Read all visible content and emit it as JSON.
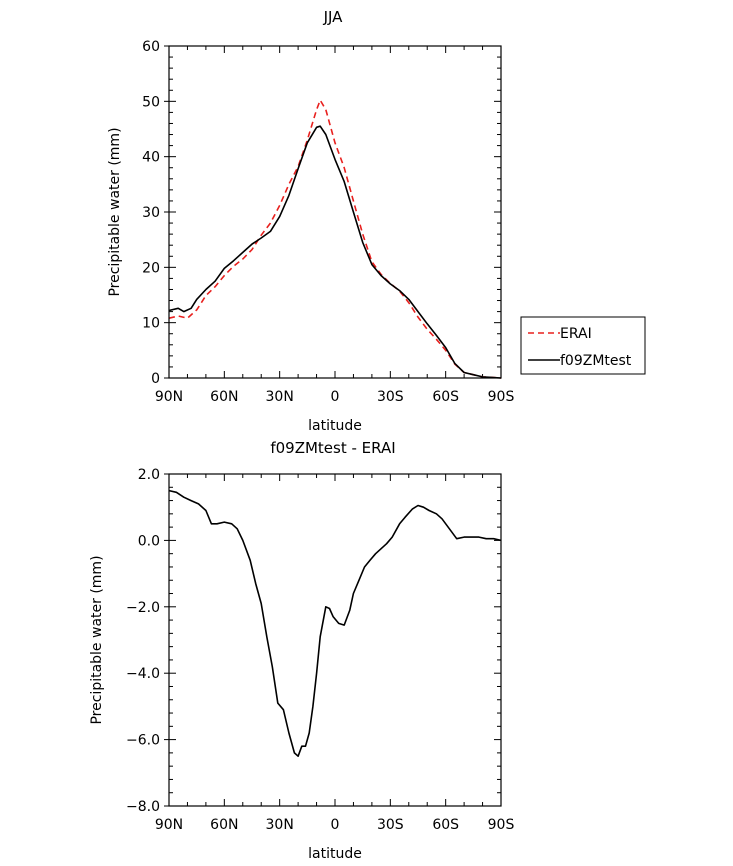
{
  "chart_data": [
    {
      "type": "line",
      "title": "JJA",
      "xlabel": "latitude",
      "ylabel": "Precipitable water (mm)",
      "x_unit": "degrees latitude, north positive",
      "xlim": [
        90,
        -90
      ],
      "ylim": [
        0,
        60
      ],
      "xticks": [
        90,
        60,
        30,
        0,
        -30,
        -60,
        -90
      ],
      "xtick_labels": [
        "90N",
        "60N",
        "30N",
        "0",
        "30S",
        "60S",
        "90S"
      ],
      "yticks": [
        0,
        10,
        20,
        30,
        40,
        50,
        60
      ],
      "ytick_labels": [
        "0",
        "10",
        "20",
        "30",
        "40",
        "50",
        "60"
      ],
      "legend": {
        "placement": "outside-right"
      },
      "series": [
        {
          "name": "ERAI",
          "color": "#e8201e",
          "dash": "dashed",
          "x": [
            90,
            85,
            80,
            75,
            70,
            65,
            60,
            55,
            50,
            45,
            40,
            35,
            30,
            25,
            20,
            15,
            10,
            8,
            5,
            0,
            -5,
            -10,
            -15,
            -20,
            -25,
            -30,
            -35,
            -40,
            -45,
            -50,
            -55,
            -60,
            -65,
            -70,
            -75,
            -80,
            -85,
            -90
          ],
          "y": [
            10.8,
            11.2,
            10.8,
            12.3,
            14.9,
            16.5,
            18.5,
            20.2,
            21.5,
            23.2,
            25.8,
            28.0,
            31.2,
            35.0,
            38.2,
            43.0,
            48.5,
            50.2,
            48.5,
            42.5,
            38.0,
            32.0,
            26.0,
            21.0,
            18.7,
            17.1,
            15.7,
            13.6,
            11.0,
            8.8,
            7.0,
            5.0,
            2.5,
            1.0,
            0.6,
            0.2,
            0.1,
            0.0
          ]
        },
        {
          "name": "f09ZMtest",
          "color": "#000000",
          "dash": "solid",
          "x": [
            90,
            85,
            82,
            78,
            75,
            70,
            65,
            60,
            55,
            50,
            45,
            40,
            35,
            30,
            25,
            20,
            15,
            10,
            8,
            5,
            0,
            -5,
            -10,
            -15,
            -20,
            -25,
            -30,
            -35,
            -40,
            -45,
            -50,
            -55,
            -60,
            -65,
            -70,
            -75,
            -80,
            -85,
            -90
          ],
          "y": [
            12.2,
            12.6,
            12.0,
            12.6,
            14.2,
            16.0,
            17.5,
            19.8,
            21.2,
            22.7,
            24.2,
            25.3,
            26.5,
            29.2,
            33.0,
            37.8,
            42.5,
            45.3,
            45.5,
            44.0,
            39.5,
            35.5,
            30.0,
            24.5,
            20.5,
            18.5,
            17.0,
            15.8,
            14.2,
            12.0,
            9.8,
            7.7,
            5.5,
            2.6,
            1.0,
            0.6,
            0.2,
            0.1,
            0.0
          ]
        }
      ]
    },
    {
      "type": "line",
      "title": "f09ZMtest - ERAI",
      "xlabel": "latitude",
      "ylabel": "Precipitable water (mm)",
      "x_unit": "degrees latitude, north positive",
      "xlim": [
        90,
        -90
      ],
      "ylim": [
        -8,
        2
      ],
      "xticks": [
        90,
        60,
        30,
        0,
        -30,
        -60,
        -90
      ],
      "xtick_labels": [
        "90N",
        "60N",
        "30N",
        "0",
        "30S",
        "60S",
        "90S"
      ],
      "yticks": [
        -8,
        -6,
        -4,
        -2,
        0,
        2
      ],
      "ytick_labels": [
        "−8.0",
        "−6.0",
        "−4.0",
        "−2.0",
        "0.0",
        "2.0"
      ],
      "series": [
        {
          "color": "#000000",
          "dash": "solid",
          "x": [
            90,
            86,
            82,
            78,
            74,
            70,
            67,
            64,
            60,
            56,
            53,
            50,
            46,
            43,
            40,
            37,
            34,
            31,
            28,
            25,
            22,
            20,
            18,
            16,
            14,
            12,
            10,
            8,
            5,
            3,
            1,
            -2,
            -5,
            -8,
            -10,
            -13,
            -16,
            -19,
            -22,
            -25,
            -28,
            -31,
            -35,
            -38,
            -42,
            -45,
            -48,
            -51,
            -55,
            -58,
            -62,
            -66,
            -70,
            -74,
            -78,
            -82,
            -86,
            -90
          ],
          "y": [
            1.5,
            1.45,
            1.3,
            1.2,
            1.1,
            0.9,
            0.5,
            0.5,
            0.55,
            0.5,
            0.35,
            0.0,
            -0.6,
            -1.3,
            -1.9,
            -2.9,
            -3.8,
            -4.9,
            -5.1,
            -5.8,
            -6.4,
            -6.5,
            -6.2,
            -6.2,
            -5.8,
            -5.0,
            -4.0,
            -2.9,
            -2.0,
            -2.05,
            -2.3,
            -2.5,
            -2.55,
            -2.1,
            -1.6,
            -1.2,
            -0.8,
            -0.6,
            -0.4,
            -0.25,
            -0.1,
            0.1,
            0.5,
            0.7,
            0.95,
            1.05,
            1.0,
            0.9,
            0.8,
            0.65,
            0.35,
            0.05,
            0.1,
            0.1,
            0.1,
            0.05,
            0.05,
            0.0
          ]
        }
      ]
    }
  ]
}
